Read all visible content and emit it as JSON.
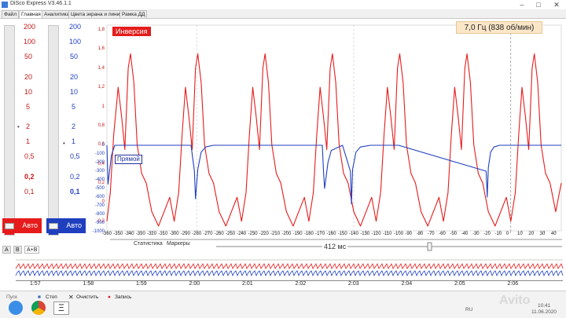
{
  "window": {
    "title": "DiSco Express V3.46.1.1",
    "min_glyph": "–",
    "max_glyph": "□",
    "close_glyph": "✕"
  },
  "tabs": [
    {
      "label": "Файл",
      "active": false
    },
    {
      "label": "Главная",
      "active": true
    },
    {
      "label": "Аналитика",
      "active": false
    },
    {
      "label": "Цвета экрана и линий",
      "active": false
    },
    {
      "label": "Рамка ДД",
      "active": false
    }
  ],
  "scales": {
    "red": {
      "labels": [
        "200",
        "100",
        "50",
        "20",
        "10",
        "5",
        "2",
        "1",
        "0,5",
        "0,2",
        "0,1"
      ],
      "selected": "0,2",
      "auto_label": "Авто",
      "color": "#e61b1b"
    },
    "blue": {
      "labels": [
        "200",
        "100",
        "50",
        "20",
        "10",
        "5",
        "2",
        "1",
        "0,5",
        "0,2",
        "0,1"
      ],
      "selected": "0,1",
      "auto_label": "Авто",
      "color": "#1f3fbf"
    }
  },
  "channel_tabs": [
    "A",
    "B",
    "A+B"
  ],
  "plot": {
    "inversion_label": "Инверсия",
    "frequency_readout": "7,0 Гц (838 об/мин)",
    "direct_label": "Прямой",
    "stats_label": "Статистика",
    "markers_label": "Маркеры",
    "period_readout": "412 мс",
    "ms_ticks": [
      "-360",
      "-350",
      "-340",
      "-330",
      "-320",
      "-310",
      "-300",
      "-290",
      "-280",
      "-270",
      "-260",
      "-250",
      "-240",
      "-230",
      "-220",
      "-210",
      "-200",
      "-190",
      "-180",
      "-170",
      "-160",
      "-150",
      "-140",
      "-130",
      "-120",
      "-110",
      "-100",
      "-90",
      "-80",
      "-70",
      "-60",
      "-50",
      "-40",
      "-30",
      "-20",
      "-10",
      "0",
      "10",
      "20",
      "30",
      "40"
    ]
  },
  "chart_data": {
    "type": "line",
    "title": "",
    "xlabel": "мс",
    "ylabel": "",
    "x_range": [
      -360,
      45
    ],
    "red_axis": {
      "ticks": [
        "1,8",
        "1,6",
        "1,4",
        "1,2",
        "1",
        "0,8",
        "0,6",
        "0,4",
        "0,2",
        "0",
        "-0,2"
      ],
      "range": [
        -0.3,
        1.85
      ]
    },
    "blue_axis": {
      "ticks": [
        "0",
        "-100",
        "-200",
        "-300",
        "-400",
        "-500",
        "-600",
        "-700",
        "-800",
        "-900",
        "-1000"
      ],
      "range": [
        -1000,
        0
      ]
    },
    "series": [
      {
        "name": "Инверсия",
        "color": "#e61b1b",
        "x": [
          -360,
          -357,
          -354,
          -350,
          -347,
          -344,
          -341,
          -339,
          -336,
          -333,
          -329,
          -325,
          -320,
          -314,
          -309,
          -304,
          -300,
          -296,
          -293,
          -290,
          -287,
          -284,
          -281,
          -279,
          -276,
          -273,
          -269,
          -265,
          -260,
          -254,
          -249,
          -244,
          -240,
          -236,
          -233,
          -230,
          -227,
          -224,
          -221,
          -219,
          -216,
          -213,
          -209,
          -205,
          -200,
          -194,
          -189,
          -184,
          -180,
          -176,
          -173,
          -170,
          -167,
          -164,
          -161,
          -159,
          -156,
          -153,
          -149,
          -145,
          -140,
          -134,
          -129,
          -124,
          -120,
          -116,
          -113,
          -110,
          -107,
          -104,
          -101,
          -99,
          -96,
          -93,
          -89,
          -85,
          -80,
          -74,
          -69,
          -64,
          -60,
          -56,
          -53,
          -50,
          -47,
          -44,
          -41,
          -39,
          -36,
          -33,
          -29,
          -25,
          -20,
          -14,
          -9,
          -4,
          0,
          4,
          7,
          10,
          13,
          16,
          19,
          21,
          24,
          27,
          31,
          35,
          40,
          45
        ],
        "y": [
          -0.2,
          0.1,
          0.7,
          1.2,
          0.9,
          0.55,
          1.4,
          1.55,
          1.25,
          0.6,
          0.3,
          0.2,
          -0.1,
          -0.25,
          -0.1,
          0.05,
          -0.2,
          0.1,
          0.7,
          1.2,
          0.9,
          0.55,
          1.4,
          1.55,
          1.25,
          0.6,
          0.3,
          0.2,
          -0.1,
          -0.25,
          -0.1,
          0.05,
          -0.2,
          0.1,
          0.7,
          1.2,
          0.9,
          0.55,
          1.4,
          1.55,
          1.25,
          0.6,
          0.3,
          0.2,
          -0.1,
          -0.25,
          -0.1,
          0.05,
          -0.2,
          0.1,
          0.7,
          1.2,
          0.9,
          0.55,
          1.4,
          1.55,
          1.25,
          0.6,
          0.3,
          0.2,
          -0.1,
          -0.25,
          -0.1,
          0.05,
          -0.2,
          0.1,
          0.7,
          1.2,
          0.9,
          0.55,
          1.4,
          1.55,
          1.25,
          0.6,
          0.3,
          0.2,
          -0.1,
          -0.25,
          -0.1,
          0.05,
          -0.2,
          0.1,
          0.7,
          1.2,
          0.9,
          0.55,
          1.4,
          1.55,
          1.25,
          0.6,
          0.3,
          0.2,
          -0.1,
          -0.25,
          -0.1,
          0.05,
          -0.2,
          0.1,
          0.7,
          1.2,
          0.9,
          0.55,
          1.4,
          1.55,
          1.25,
          0.6,
          0.3,
          0.2,
          -0.1,
          0.2
        ]
      },
      {
        "name": "Прямой",
        "color": "#1f3fbf",
        "x": [
          -360,
          -359,
          -356,
          -353,
          -340,
          -285,
          -282,
          -281,
          -279,
          -276,
          -272,
          -265,
          -220,
          -168,
          -167,
          -166,
          -163,
          -160,
          -150,
          -143,
          -142,
          -141,
          -138,
          -134,
          -125,
          -100,
          -22,
          -21,
          -20,
          -18,
          -15,
          -10,
          0,
          45
        ],
        "y": [
          0,
          -450,
          -120,
          0,
          0,
          0,
          -300,
          -620,
          -280,
          -80,
          -20,
          0,
          0,
          0,
          -280,
          -500,
          -200,
          -60,
          0,
          -300,
          -680,
          -280,
          -80,
          -20,
          0,
          0,
          -300,
          -600,
          -260,
          -80,
          -20,
          0,
          0,
          0
        ]
      }
    ]
  },
  "timeline": {
    "times": [
      "1:57",
      "1:58",
      "1:59",
      "2:00",
      "2:01",
      "2:02",
      "2:03",
      "2:04",
      "2:05",
      "2:06"
    ]
  },
  "statusbar": {
    "start_label": "Пуск",
    "stop_label": "Стоп",
    "clear_label": "Очистить",
    "record_label": "Запись",
    "lang": "RU",
    "clock": "10:41",
    "date": "11.06.2020",
    "watermark": "Avito"
  }
}
